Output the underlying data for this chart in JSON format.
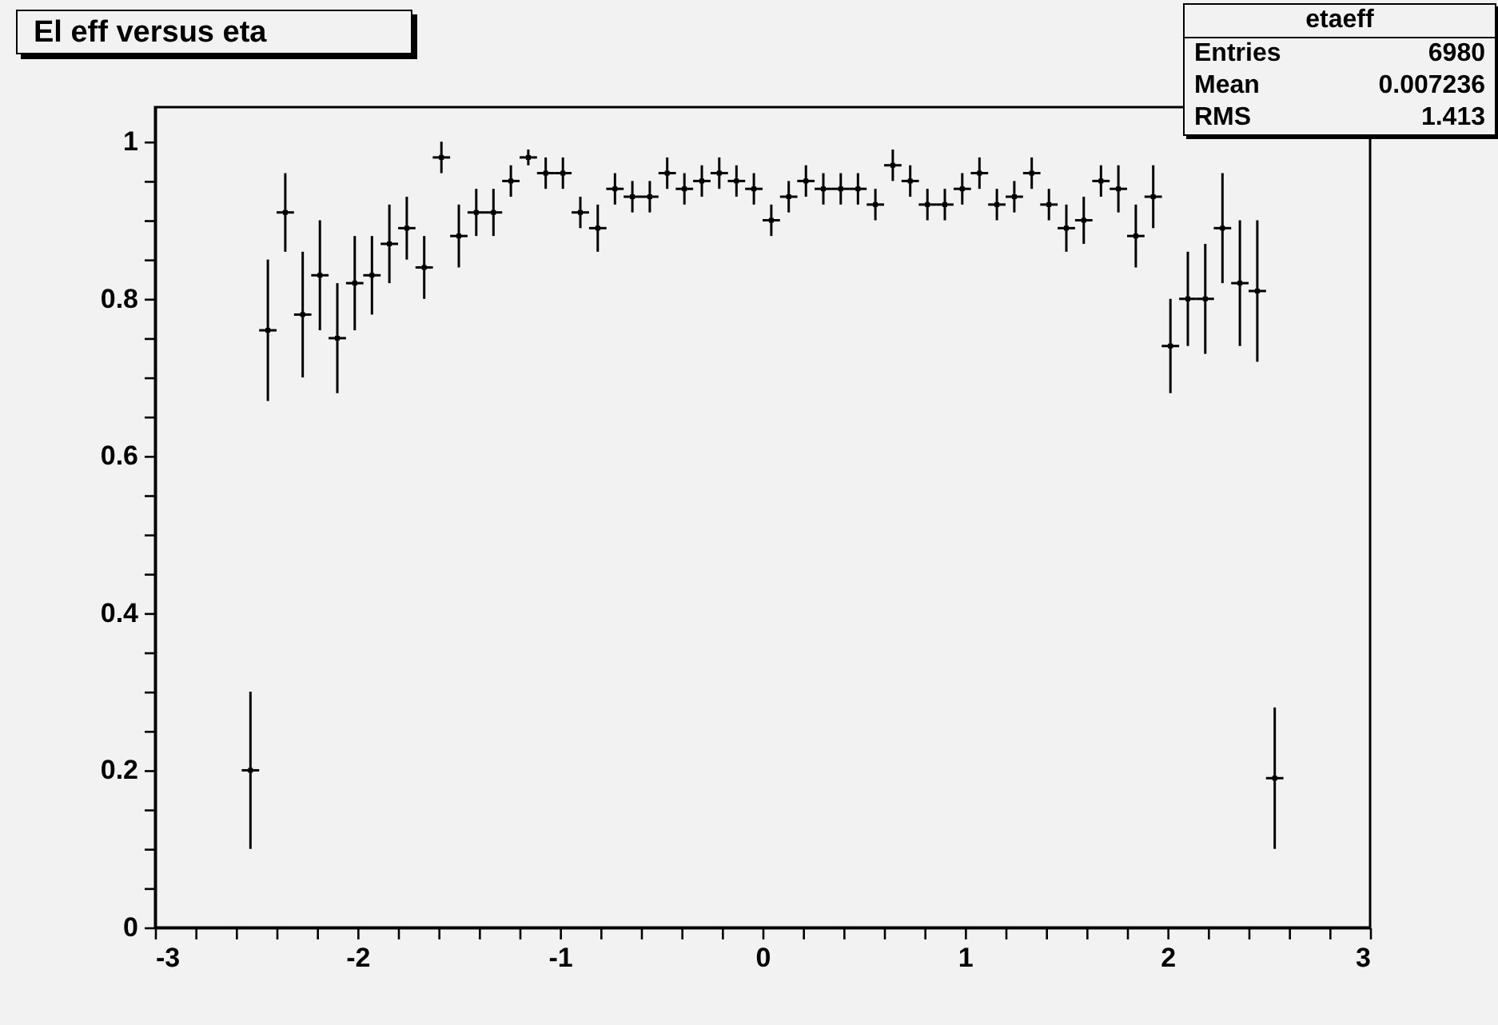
{
  "chart_data": {
    "type": "scatter",
    "title": "El eff versus eta",
    "marker": "square",
    "x": [
      -2.529,
      -2.443,
      -2.357,
      -2.271,
      -2.186,
      -2.1,
      -2.014,
      -1.929,
      -1.843,
      -1.757,
      -1.671,
      -1.586,
      -1.5,
      -1.414,
      -1.329,
      -1.243,
      -1.157,
      -1.071,
      -0.986,
      -0.9,
      -0.814,
      -0.729,
      -0.643,
      -0.557,
      -0.471,
      -0.386,
      -0.3,
      -0.214,
      -0.129,
      -0.043,
      0.043,
      0.129,
      0.214,
      0.3,
      0.386,
      0.471,
      0.557,
      0.643,
      0.729,
      0.814,
      0.9,
      0.986,
      1.071,
      1.157,
      1.243,
      1.329,
      1.414,
      1.5,
      1.586,
      1.671,
      1.757,
      1.843,
      1.929,
      2.014,
      2.1,
      2.186,
      2.271,
      2.357,
      2.443,
      2.529
    ],
    "series": [
      {
        "color": "#000000",
        "values": [
          0.2,
          0.76,
          0.91,
          0.78,
          0.83,
          0.75,
          0.82,
          0.83,
          0.87,
          0.89,
          0.84,
          0.98,
          0.88,
          0.91,
          0.91,
          0.95,
          0.98,
          0.96,
          0.96,
          0.91,
          0.89,
          0.94,
          0.93,
          0.93,
          0.96,
          0.94,
          0.95,
          0.96,
          0.95,
          0.94,
          0.9,
          0.93,
          0.95,
          0.94,
          0.94,
          0.94,
          0.92,
          0.97,
          0.95,
          0.92,
          0.92,
          0.94,
          0.96,
          0.92,
          0.93,
          0.96,
          0.92,
          0.89,
          0.9,
          0.95,
          0.94,
          0.88,
          0.93,
          0.74,
          0.8,
          0.8,
          0.89,
          0.82,
          0.81,
          0.19
        ],
        "errors": [
          0.1,
          0.09,
          0.05,
          0.08,
          0.07,
          0.07,
          0.06,
          0.05,
          0.05,
          0.04,
          0.04,
          0.02,
          0.04,
          0.03,
          0.03,
          0.02,
          0.01,
          0.02,
          0.02,
          0.02,
          0.03,
          0.02,
          0.02,
          0.02,
          0.02,
          0.02,
          0.02,
          0.02,
          0.02,
          0.02,
          0.02,
          0.02,
          0.02,
          0.02,
          0.02,
          0.02,
          0.02,
          0.02,
          0.02,
          0.02,
          0.02,
          0.02,
          0.02,
          0.02,
          0.02,
          0.02,
          0.02,
          0.03,
          0.03,
          0.02,
          0.03,
          0.04,
          0.04,
          0.06,
          0.06,
          0.07,
          0.07,
          0.08,
          0.09,
          0.09
        ],
        "xerrors": [
          0.043,
          0.043,
          0.043,
          0.043,
          0.043,
          0.043,
          0.043,
          0.043,
          0.043,
          0.043,
          0.043,
          0.043,
          0.043,
          0.043,
          0.043,
          0.043,
          0.043,
          0.043,
          0.043,
          0.043,
          0.043,
          0.043,
          0.043,
          0.043,
          0.043,
          0.043,
          0.043,
          0.043,
          0.043,
          0.043,
          0.043,
          0.043,
          0.043,
          0.043,
          0.043,
          0.043,
          0.043,
          0.043,
          0.043,
          0.043,
          0.043,
          0.043,
          0.043,
          0.043,
          0.043,
          0.043,
          0.043,
          0.043,
          0.043,
          0.043,
          0.043,
          0.043,
          0.043,
          0.043,
          0.043,
          0.043,
          0.043,
          0.043,
          0.043,
          0.043
        ]
      }
    ],
    "xlim": [
      -3,
      3
    ],
    "xticks": [
      -3,
      {
        "value": -2.8,
        "label": null
      },
      {
        "value": -2.6,
        "label": null
      },
      {
        "value": -2.4,
        "label": null
      },
      {
        "value": -2.2,
        "label": null
      },
      -2,
      {
        "value": -1.8,
        "label": null
      },
      {
        "value": -1.6,
        "label": null
      },
      {
        "value": -1.4,
        "label": null
      },
      {
        "value": -1.2,
        "label": null
      },
      -1,
      {
        "value": -0.8,
        "label": null
      },
      {
        "value": -0.6,
        "label": null
      },
      {
        "value": -0.4,
        "label": null
      },
      {
        "value": -0.2,
        "label": null
      },
      0,
      {
        "value": 0.2,
        "label": null
      },
      {
        "value": 0.4,
        "label": null
      },
      {
        "value": 0.6,
        "label": null
      },
      {
        "value": 0.8,
        "label": null
      },
      1,
      {
        "value": 1.2,
        "label": null
      },
      {
        "value": 1.4,
        "label": null
      },
      {
        "value": 1.6,
        "label": null
      },
      {
        "value": 1.8,
        "label": null
      },
      2,
      {
        "value": 2.2,
        "label": null
      },
      {
        "value": 2.4,
        "label": null
      },
      {
        "value": 2.6,
        "label": null
      },
      {
        "value": 2.8,
        "label": null
      },
      3
    ],
    "ylim": [
      0,
      1.044
    ],
    "yticks": [
      0,
      {
        "value": 0.05,
        "label": null
      },
      {
        "value": 0.1,
        "label": null
      },
      {
        "value": 0.15,
        "label": null
      },
      0.2,
      {
        "value": 0.25,
        "label": null
      },
      {
        "value": 0.3,
        "label": null
      },
      {
        "value": 0.35,
        "label": null
      },
      0.4,
      {
        "value": 0.45,
        "label": null
      },
      {
        "value": 0.5,
        "label": null
      },
      {
        "value": 0.55,
        "label": null
      },
      0.6,
      {
        "value": 0.65,
        "label": null
      },
      {
        "value": 0.7,
        "label": null
      },
      {
        "value": 0.75,
        "label": null
      },
      0.8,
      {
        "value": 0.85,
        "label": null
      },
      {
        "value": 0.9,
        "label": null
      },
      {
        "value": 0.95,
        "label": null
      },
      1
    ],
    "annotations": [
      "etaeff",
      "Entries",
      "6980",
      "Mean",
      "0.007236",
      "RMS",
      "1.413"
    ]
  }
}
